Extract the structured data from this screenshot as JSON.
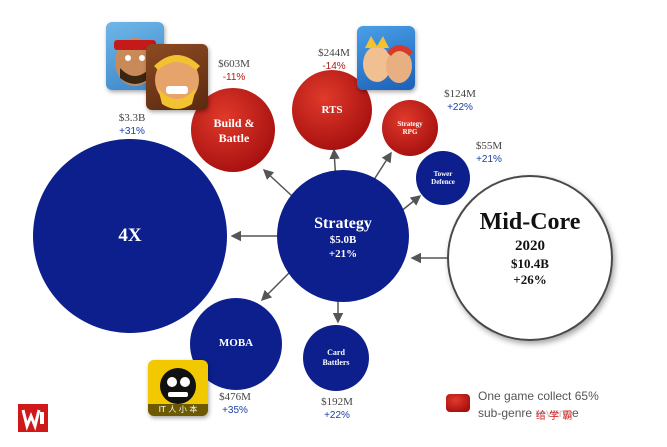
{
  "colors": {
    "blue_circle": "#0c1f8c",
    "red_circle": "#c01818",
    "mid_core_fill": "#ffffff",
    "arrow": "#555555",
    "growth_text": "#1a3ea8",
    "decline_text": "#b01818",
    "logo_red": "#d01818"
  },
  "center": {
    "name": "Strategy",
    "value": "$5.0B",
    "growth": "+21%"
  },
  "mid_core": {
    "name": "Mid-Core",
    "year": "2020",
    "value": "$10.4B",
    "growth": "+26%"
  },
  "subgenres": {
    "four_x": {
      "name": "4X",
      "value": "$3.3B",
      "growth": "+31%"
    },
    "build_battle": {
      "name_line1": "Build &",
      "name_line2": "Battle",
      "value": "$603M",
      "growth": "-11%"
    },
    "rts": {
      "name": "RTS",
      "value": "$244M",
      "growth": "-14%"
    },
    "strategy_rpg": {
      "name_line1": "Strategy",
      "name_line2": "RPG",
      "value": "$124M",
      "growth": "+22%"
    },
    "tower_defence": {
      "name_line1": "Tower",
      "name_line2": "Defence",
      "value": "$55M",
      "growth": "+21%"
    },
    "moba": {
      "name": "MOBA",
      "value": "$476M",
      "growth": "+35%"
    },
    "card_battlers": {
      "name_line1": "Card",
      "name_line2": "Battlers",
      "value": "$192M",
      "growth": "+22%"
    }
  },
  "legend": {
    "line1": "One game collect 65%",
    "line2": "sub-genre revenue",
    "watermark": "给 学 霸"
  },
  "icons": {
    "brawl_stars_caption": "IT 人 小 本"
  }
}
